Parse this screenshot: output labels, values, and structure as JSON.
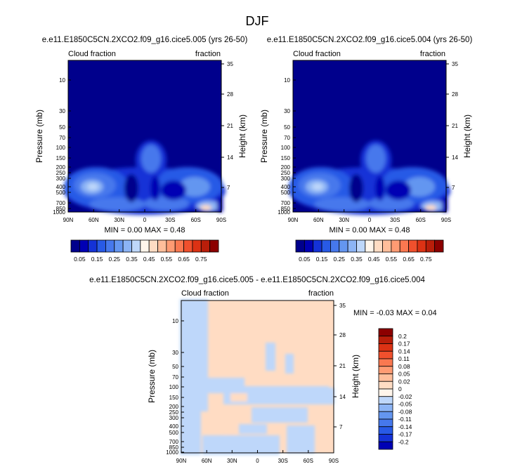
{
  "figure": {
    "title": "DJF"
  },
  "chart_data": [
    {
      "type": "heatmap",
      "title": "e.e11.E1850C5CN.2XCO2.f09_g16.cice5.005 (yrs 26-50)",
      "left_label": "Cloud fraction",
      "right_label": "fraction",
      "ylabel": "Pressure (mb)",
      "ylabel_right": "Height (km)",
      "x_ticks": [
        "90N",
        "60N",
        "30N",
        "0",
        "30S",
        "60S",
        "90S"
      ],
      "y_ticks": [
        "10",
        "30",
        "50",
        "70",
        "100",
        "150",
        "200",
        "250",
        "300",
        "400",
        "500",
        "700",
        "850",
        "1000"
      ],
      "y_right_ticks": [
        "35",
        "28",
        "21",
        "14",
        "7"
      ],
      "stats": "MIN =  0.00  MAX =  0.48",
      "colorbar_labels": [
        "0.05",
        "0.15",
        "0.25",
        "0.35",
        "0.45",
        "0.55",
        "0.65",
        "0.75"
      ],
      "colorbar_colors": [
        "#00008c",
        "#0000b4",
        "#1432d7",
        "#285ae6",
        "#4678ec",
        "#6496f0",
        "#8cb4f5",
        "#bed7fa",
        "#fff5eb",
        "#ffdcc3",
        "#ffbe9b",
        "#ff9b73",
        "#fa7850",
        "#f0502d",
        "#dc3214",
        "#b91e0a",
        "#8c0000"
      ]
    },
    {
      "type": "heatmap",
      "title": "e.e11.E1850C5CN.2XCO2.f09_g16.cice5.004 (yrs 26-50)",
      "left_label": "Cloud fraction",
      "right_label": "fraction",
      "ylabel": "Pressure (mb)",
      "ylabel_right": "Height (km)",
      "x_ticks": [
        "90N",
        "60N",
        "30N",
        "0",
        "30S",
        "60S",
        "90S"
      ],
      "y_ticks": [
        "10",
        "30",
        "50",
        "70",
        "100",
        "150",
        "200",
        "250",
        "300",
        "400",
        "500",
        "700",
        "850",
        "1000"
      ],
      "y_right_ticks": [
        "35",
        "28",
        "21",
        "14",
        "7"
      ],
      "stats": "MIN =  0.00  MAX =  0.48",
      "colorbar_labels": [
        "0.05",
        "0.15",
        "0.25",
        "0.35",
        "0.45",
        "0.55",
        "0.65",
        "0.75"
      ],
      "colorbar_colors": [
        "#00008c",
        "#0000b4",
        "#1432d7",
        "#285ae6",
        "#4678ec",
        "#6496f0",
        "#8cb4f5",
        "#bed7fa",
        "#fff5eb",
        "#ffdcc3",
        "#ffbe9b",
        "#ff9b73",
        "#fa7850",
        "#f0502d",
        "#dc3214",
        "#b91e0a",
        "#8c0000"
      ]
    },
    {
      "type": "heatmap",
      "title": "e.e11.E1850C5CN.2XCO2.f09_g16.cice5.005 - e.e11.E1850C5CN.2XCO2.f09_g16.cice5.004",
      "left_label": "Cloud fraction",
      "right_label": "fraction",
      "ylabel": "Pressure (mb)",
      "ylabel_right": "Height (km)",
      "x_ticks": [
        "90N",
        "60N",
        "30N",
        "0",
        "30S",
        "60S",
        "90S"
      ],
      "y_ticks": [
        "10",
        "30",
        "50",
        "70",
        "100",
        "150",
        "200",
        "250",
        "300",
        "400",
        "500",
        "700",
        "850",
        "1000"
      ],
      "y_right_ticks": [
        "35",
        "28",
        "21",
        "14",
        "7"
      ],
      "stats": "MIN = -0.03  MAX =   0.04",
      "colorbar_labels": [
        "0.2",
        "0.17",
        "0.14",
        "0.11",
        "0.08",
        "0.05",
        "0.02",
        "0",
        "-0.02",
        "-0.05",
        "-0.08",
        "-0.11",
        "-0.14",
        "-0.17",
        "-0.2"
      ],
      "colorbar_colors": [
        "#8c0000",
        "#b91e0a",
        "#dc3214",
        "#f0502d",
        "#fa7850",
        "#ff9b73",
        "#ffbe9b",
        "#ffdcc3",
        "#fff5eb",
        "#bed7fa",
        "#8cb4f5",
        "#6496f0",
        "#4678ec",
        "#285ae6",
        "#1432d7",
        "#0000b4"
      ]
    }
  ]
}
